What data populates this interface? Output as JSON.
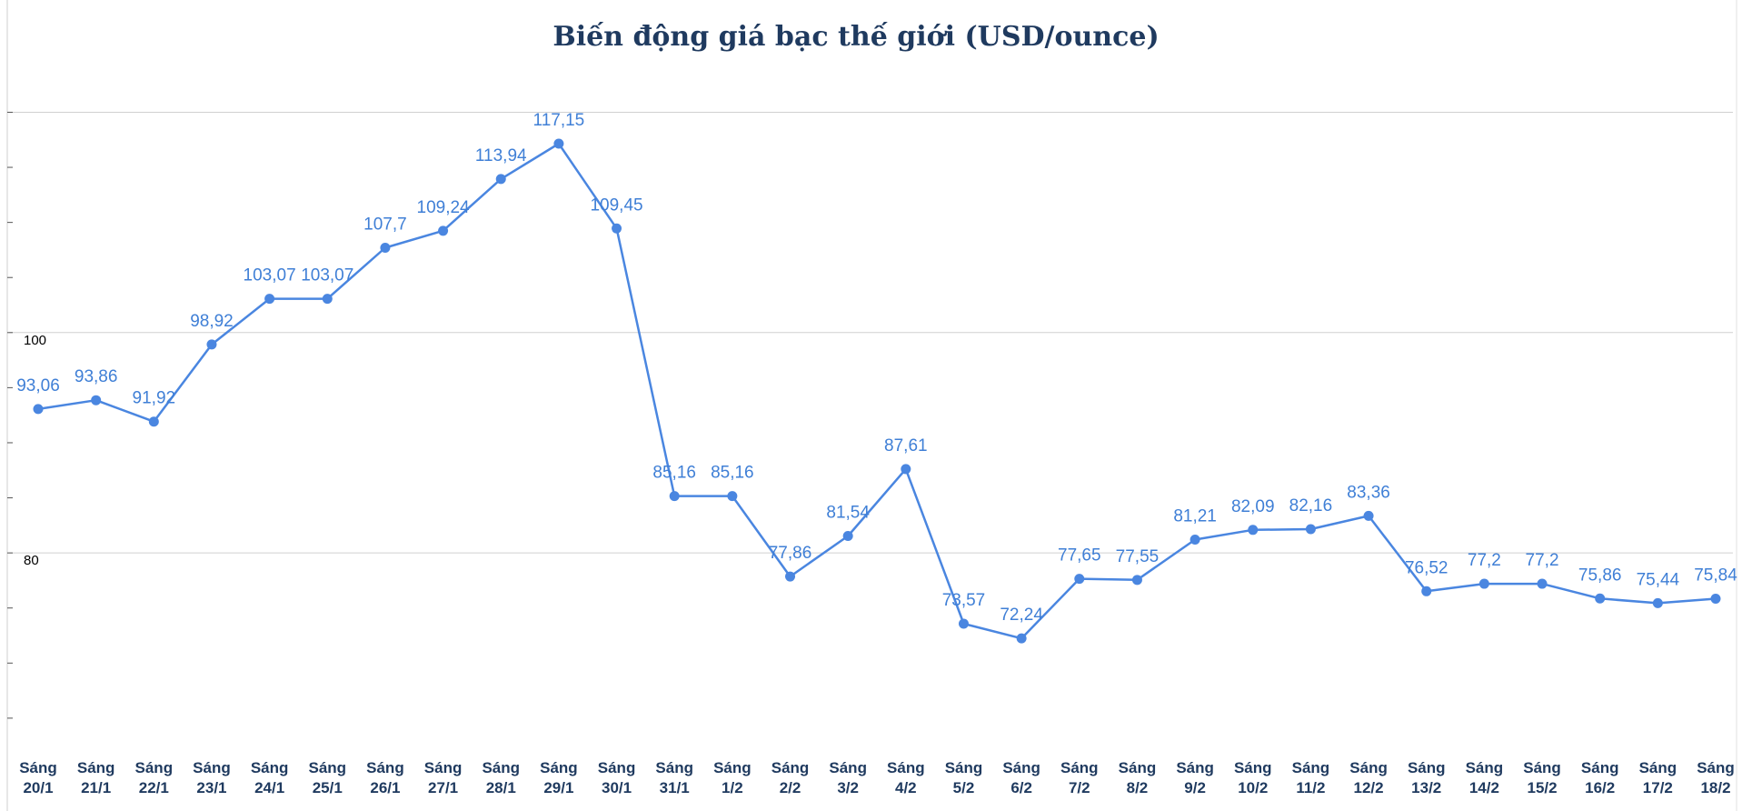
{
  "chart_data": {
    "type": "line",
    "title": "Biến động giá bạc thế giới (USD/ounce)",
    "xlabel": "",
    "ylabel": "",
    "ylim": [
      64,
      124
    ],
    "yticks": [
      80,
      100
    ],
    "grid": true,
    "legend": "none",
    "colors": {
      "line": "#4a86e0",
      "marker": "#4a86e0",
      "label": "#3f7fd6",
      "title": "#1f3a5f",
      "grid": "#d0d0d0"
    },
    "categories": [
      [
        "Sáng",
        "20/1"
      ],
      [
        "Sáng",
        "21/1"
      ],
      [
        "Sáng",
        "22/1"
      ],
      [
        "Sáng",
        "23/1"
      ],
      [
        "Sáng",
        "24/1"
      ],
      [
        "Sáng",
        "25/1"
      ],
      [
        "Sáng",
        "26/1"
      ],
      [
        "Sáng",
        "27/1"
      ],
      [
        "Sáng",
        "28/1"
      ],
      [
        "Sáng",
        "29/1"
      ],
      [
        "Sáng",
        "30/1"
      ],
      [
        "Sáng",
        "31/1"
      ],
      [
        "Sáng",
        "1/2"
      ],
      [
        "Sáng",
        "2/2"
      ],
      [
        "Sáng",
        "3/2"
      ],
      [
        "Sáng",
        "4/2"
      ],
      [
        "Sáng",
        "5/2"
      ],
      [
        "Sáng",
        "6/2"
      ],
      [
        "Sáng",
        "7/2"
      ],
      [
        "Sáng",
        "8/2"
      ],
      [
        "Sáng",
        "9/2"
      ],
      [
        "Sáng",
        "10/2"
      ],
      [
        "Sáng",
        "11/2"
      ],
      [
        "Sáng",
        "12/2"
      ],
      [
        "Sáng",
        "13/2"
      ],
      [
        "Sáng",
        "14/2"
      ],
      [
        "Sáng",
        "15/2"
      ],
      [
        "Sáng",
        "16/2"
      ],
      [
        "Sáng",
        "17/2"
      ],
      [
        "Sáng",
        "18/2"
      ]
    ],
    "values": [
      93.06,
      93.86,
      91.92,
      98.92,
      103.07,
      103.07,
      107.7,
      109.24,
      113.94,
      117.15,
      109.45,
      85.16,
      85.16,
      77.86,
      81.54,
      87.61,
      73.57,
      72.24,
      77.65,
      77.55,
      81.21,
      82.09,
      82.16,
      83.36,
      76.52,
      77.2,
      77.2,
      75.86,
      75.44,
      75.84
    ],
    "data_labels": [
      "93,06",
      "93,86",
      "91,92",
      "98,92",
      "103,07",
      "103,07",
      "107,7",
      "109,24",
      "113,94",
      "117,15",
      "109,45",
      "85,16",
      "85,16",
      "77,86",
      "81,54",
      "87,61",
      "73,57",
      "72,24",
      "77,65",
      "77,55",
      "81,21",
      "82,09",
      "82,16",
      "83,36",
      "76,52",
      "77,2",
      "77,2",
      "75,86",
      "75,44",
      "75,84"
    ]
  }
}
